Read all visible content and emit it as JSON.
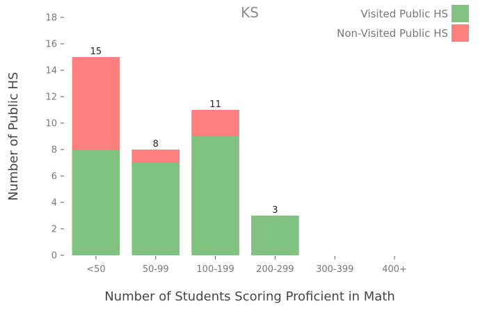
{
  "chart_data": {
    "type": "bar",
    "stacked": true,
    "title": "KS",
    "xlabel": "Number of Students Scoring Proficient in Math",
    "ylabel": "Number of Public HS",
    "categories": [
      "<50",
      "50-99",
      "100-199",
      "200-299",
      "300-399",
      "400+"
    ],
    "series": [
      {
        "name": "Visited Public HS",
        "color": "#80c280",
        "values": [
          8,
          7,
          9,
          3,
          0,
          0
        ]
      },
      {
        "name": "Non-Visited Public HS",
        "color": "#ff7f7f",
        "values": [
          7,
          1,
          2,
          0,
          0,
          0
        ]
      }
    ],
    "totals": [
      15,
      8,
      11,
      3,
      null,
      null
    ],
    "totals_labels": [
      "15",
      "8",
      "11",
      "3",
      "",
      ""
    ],
    "ylim": [
      0,
      18
    ],
    "yticks": [
      0,
      2,
      4,
      6,
      8,
      10,
      12,
      14,
      16,
      18
    ],
    "ytick_labels": [
      "0",
      "2",
      "4",
      "6",
      "8",
      "10",
      "12",
      "14",
      "16",
      "18"
    ],
    "grid": false,
    "legend_position": "top-right"
  }
}
